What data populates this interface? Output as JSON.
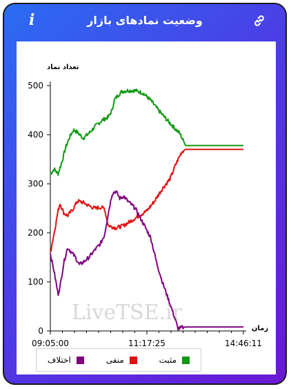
{
  "header": {
    "title": "وضعیت نمادهای بازار",
    "info_glyph": "i",
    "info_icon": "info-icon",
    "link_icon": "link-icon"
  },
  "watermark": "LiveTSE.ir",
  "chart_data": {
    "type": "line",
    "ylabel": "تعداد نماد",
    "xlabel": "زمان",
    "ylim": [
      0,
      500
    ],
    "yticks": [
      0,
      100,
      200,
      300,
      400,
      500
    ],
    "xtick_labels": [
      "09:05:00",
      "11:17:25",
      "14:46:11"
    ],
    "grid": false,
    "legend_position": "bottom-left",
    "x_domain": [
      0,
      1
    ],
    "series": [
      {
        "name": "مثبت",
        "color": "#119911",
        "points": [
          [
            0,
            320
          ],
          [
            0.02,
            330
          ],
          [
            0.04,
            320
          ],
          [
            0.06,
            345
          ],
          [
            0.08,
            375
          ],
          [
            0.1,
            395
          ],
          [
            0.12,
            410
          ],
          [
            0.14,
            405
          ],
          [
            0.17,
            393
          ],
          [
            0.2,
            403
          ],
          [
            0.24,
            420
          ],
          [
            0.27,
            430
          ],
          [
            0.3,
            436
          ],
          [
            0.32,
            450
          ],
          [
            0.33,
            470
          ],
          [
            0.35,
            480
          ],
          [
            0.37,
            488
          ],
          [
            0.4,
            490
          ],
          [
            0.44,
            490
          ],
          [
            0.48,
            485
          ],
          [
            0.52,
            470
          ],
          [
            0.56,
            450
          ],
          [
            0.6,
            432
          ],
          [
            0.64,
            415
          ],
          [
            0.67,
            403
          ],
          [
            0.69,
            387
          ],
          [
            0.7,
            378
          ],
          [
            0.75,
            378
          ],
          [
            1,
            378
          ]
        ]
      },
      {
        "name": "منفی",
        "color": "#e01111",
        "points": [
          [
            0,
            160
          ],
          [
            0.02,
            200
          ],
          [
            0.04,
            245
          ],
          [
            0.05,
            260
          ],
          [
            0.07,
            240
          ],
          [
            0.09,
            235
          ],
          [
            0.12,
            250
          ],
          [
            0.14,
            265
          ],
          [
            0.17,
            262
          ],
          [
            0.2,
            255
          ],
          [
            0.23,
            250
          ],
          [
            0.26,
            252
          ],
          [
            0.28,
            250
          ],
          [
            0.3,
            215
          ],
          [
            0.34,
            210
          ],
          [
            0.38,
            215
          ],
          [
            0.42,
            225
          ],
          [
            0.46,
            235
          ],
          [
            0.5,
            245
          ],
          [
            0.54,
            265
          ],
          [
            0.58,
            290
          ],
          [
            0.62,
            310
          ],
          [
            0.65,
            340
          ],
          [
            0.68,
            365
          ],
          [
            0.7,
            370
          ],
          [
            0.75,
            370
          ],
          [
            1,
            370
          ]
        ]
      },
      {
        "name": "اختلاف",
        "color": "#800080",
        "points": [
          [
            0,
            158
          ],
          [
            0.02,
            120
          ],
          [
            0.04,
            75
          ],
          [
            0.05,
            90
          ],
          [
            0.07,
            140
          ],
          [
            0.09,
            170
          ],
          [
            0.11,
            160
          ],
          [
            0.13,
            150
          ],
          [
            0.15,
            135
          ],
          [
            0.17,
            140
          ],
          [
            0.2,
            150
          ],
          [
            0.23,
            165
          ],
          [
            0.26,
            178
          ],
          [
            0.28,
            195
          ],
          [
            0.3,
            240
          ],
          [
            0.32,
            280
          ],
          [
            0.34,
            285
          ],
          [
            0.36,
            270
          ],
          [
            0.38,
            275
          ],
          [
            0.4,
            265
          ],
          [
            0.44,
            250
          ],
          [
            0.48,
            220
          ],
          [
            0.52,
            190
          ],
          [
            0.55,
            140
          ],
          [
            0.58,
            100
          ],
          [
            0.62,
            55
          ],
          [
            0.65,
            20
          ],
          [
            0.66,
            5
          ],
          [
            0.7,
            8
          ],
          [
            1,
            8
          ]
        ]
      }
    ]
  }
}
